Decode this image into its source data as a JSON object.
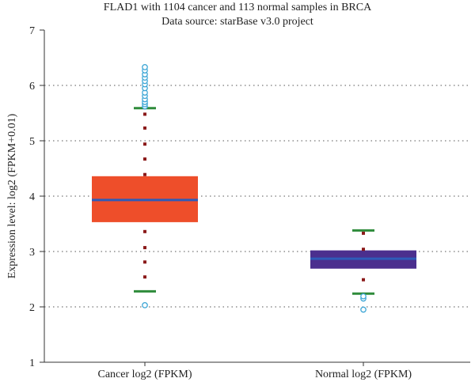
{
  "chart_data": {
    "type": "box",
    "title": "FLAD1 with 1104 cancer and 113 normal samples in BRCA",
    "subtitle": "Data source: starBase v3.0 project",
    "ylabel": "Expression level: log2 (FPKM+0.01)",
    "xlabel": "",
    "ylim": [
      1,
      7
    ],
    "yticks": [
      "1",
      "2",
      "3",
      "4",
      "5",
      "6",
      "7"
    ],
    "grid": "horizontal-dotted",
    "categories": [
      "Cancer log2 (FPKM)",
      "Normal log2 (FPKM)"
    ],
    "boxes": [
      {
        "category": "Cancer log2 (FPKM)",
        "lower_whisker": 2.28,
        "q1": 3.53,
        "median": 3.93,
        "q3": 4.36,
        "upper_whisker": 5.59,
        "fill": "#EE4E2A",
        "outliers": [
          2.03,
          5.62,
          5.66,
          5.7,
          5.75,
          5.81,
          5.87,
          5.95,
          6.02,
          6.08,
          6.14,
          6.2,
          6.27,
          6.33
        ],
        "points": [
          2.54,
          2.81,
          3.07,
          3.36,
          4.39,
          4.67,
          4.94,
          5.23,
          5.48
        ]
      },
      {
        "category": "Normal log2 (FPKM)",
        "lower_whisker": 2.24,
        "q1": 2.69,
        "median": 2.87,
        "q3": 3.02,
        "upper_whisker": 3.38,
        "fill": "#4B2F8E",
        "outliers": [
          1.95,
          2.15,
          2.19
        ],
        "points": [
          2.49,
          3.04,
          3.33
        ]
      }
    ],
    "colors": {
      "median": "#2E5BB8",
      "whisker_cap": "#2E8B3A",
      "point": "#8B1A1A",
      "outlier": "#3FA7D6",
      "axis": "#333333",
      "grid": "#777777"
    }
  }
}
